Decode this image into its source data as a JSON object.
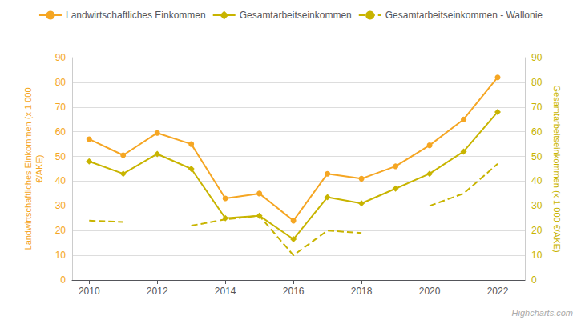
{
  "chart_data": {
    "type": "line",
    "x": [
      2010,
      2011,
      2012,
      2013,
      2014,
      2015,
      2016,
      2017,
      2018,
      2019,
      2020,
      2021,
      2022
    ],
    "series": [
      {
        "name": "Landwirtschaftliches Einkommen",
        "color": "#F5A623",
        "marker": "circle",
        "line_style": "solid",
        "values": [
          57,
          50.5,
          59.5,
          55,
          33,
          35,
          24,
          43,
          41,
          46,
          54.5,
          65,
          82
        ]
      },
      {
        "name": "Gesamtarbeitseinkommen",
        "color": "#C8B400",
        "marker": "diamond",
        "line_style": "solid",
        "axis": "y2",
        "values": [
          48,
          43,
          51,
          45,
          25,
          26,
          16.5,
          33.5,
          31,
          37,
          43,
          52,
          68
        ]
      },
      {
        "name": "Gesamtarbeitseinkommen - Wallonie",
        "color": "#C8B400",
        "line_style": "dashed",
        "axis": "y2",
        "values": [
          24,
          23.5,
          null,
          22,
          24.5,
          26,
          10,
          20,
          19,
          null,
          30,
          35,
          47
        ]
      }
    ],
    "ylabel": "Landwirtschaftliches Einkommen (x 1 000\n€/AKE)",
    "y2label": "Gesamtarbeitseinkommen (x 1 000 €/AKE)",
    "xlim": [
      2009.5,
      2022.8
    ],
    "xticks": [
      2010,
      2012,
      2014,
      2016,
      2018,
      2020,
      2022
    ],
    "ylim": [
      0,
      90
    ],
    "yticks": [
      0,
      10,
      20,
      30,
      40,
      50,
      60,
      70,
      80,
      90
    ],
    "y2lim": [
      0,
      90
    ],
    "y2ticks": [
      0,
      10,
      20,
      30,
      40,
      50,
      60,
      70,
      80,
      90
    ],
    "grid": true,
    "legend": "top",
    "annotations": [
      "Highcharts.com"
    ]
  }
}
